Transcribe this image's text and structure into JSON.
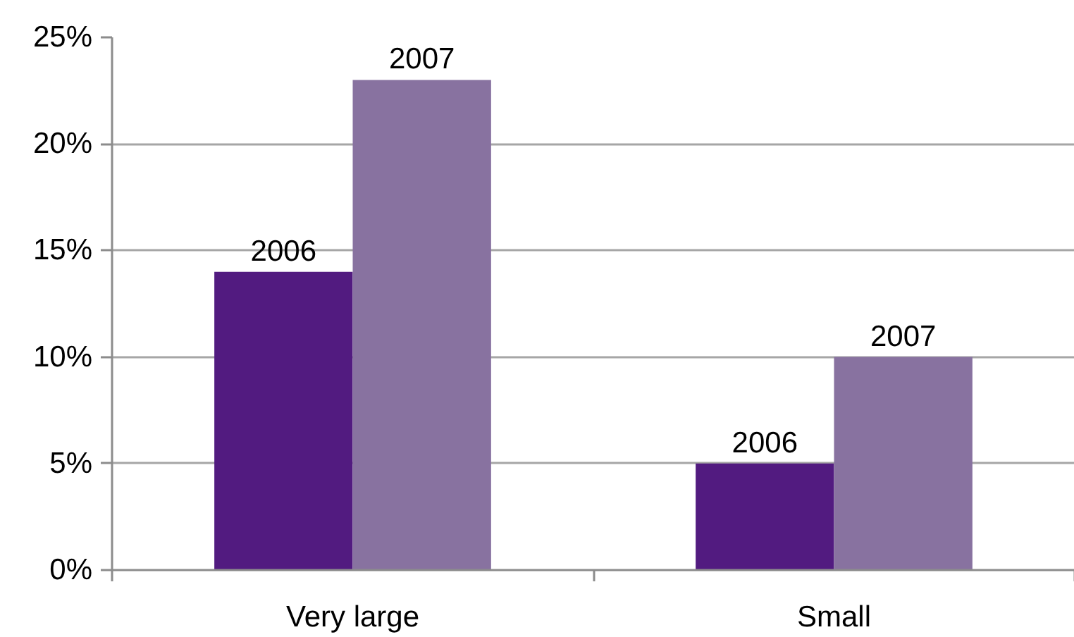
{
  "chart_data": {
    "type": "bar",
    "categories": [
      "Very large",
      "Small"
    ],
    "series": [
      {
        "name": "2006",
        "color": "#521b80",
        "values": [
          14,
          5
        ]
      },
      {
        "name": "2007",
        "color": "#8872a0",
        "values": [
          23,
          10
        ]
      }
    ],
    "ylim": [
      0,
      25
    ],
    "yticks": [
      {
        "value": 0,
        "label": "0%"
      },
      {
        "value": 5,
        "label": "5%"
      },
      {
        "value": 10,
        "label": "10%"
      },
      {
        "value": 15,
        "label": "15%"
      },
      {
        "value": 20,
        "label": "20%"
      },
      {
        "value": 25,
        "label": "25%"
      }
    ],
    "grid": "y"
  }
}
